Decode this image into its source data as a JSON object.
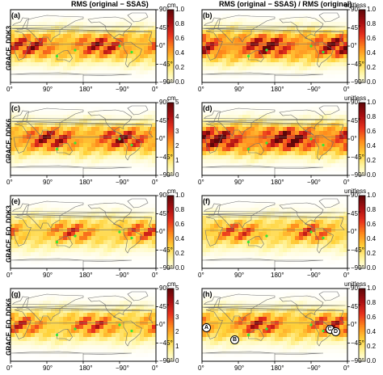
{
  "columns": [
    {
      "title": "RMS (original − SSAS)"
    },
    {
      "title": "RMS (original − SSAS) / RMS (original)"
    }
  ],
  "rows": [
    {
      "label": "GRACE, DDK3"
    },
    {
      "label": "GRACE, DDK6"
    },
    {
      "label": "GRACE_FO, DDK3"
    },
    {
      "label": "GRACE_FO, DDK6"
    }
  ],
  "panels": [
    {
      "letter": "(a)",
      "unit": "cm",
      "ticks": [
        "1.0",
        "0.8",
        "0.6",
        "0.4",
        "0.2",
        "0.0"
      ],
      "intensity": 0.55
    },
    {
      "letter": "(b)",
      "unit": "unitless",
      "ticks": [
        "1.0",
        "0.8",
        "0.6",
        "0.4",
        "0.2",
        "0.0"
      ],
      "intensity": 0.75
    },
    {
      "letter": "(c)",
      "unit": "cm",
      "ticks": [
        "5",
        "4",
        "3",
        "2",
        "1",
        "0"
      ],
      "intensity": 0.6
    },
    {
      "letter": "(d)",
      "unit": "unitless",
      "ticks": [
        "1.0",
        "0.8",
        "0.6",
        "0.4",
        "0.2",
        "0.0"
      ],
      "intensity": 0.85
    },
    {
      "letter": "(e)",
      "unit": "cm",
      "ticks": [
        "1.0",
        "0.8",
        "0.6",
        "0.4",
        "0.2",
        "0.0"
      ],
      "intensity": 0.3
    },
    {
      "letter": "(f)",
      "unit": "unitless",
      "ticks": [
        "1.0",
        "0.8",
        "0.6",
        "0.4",
        "0.2",
        "0.0"
      ],
      "intensity": 0.3
    },
    {
      "letter": "(g)",
      "unit": "cm",
      "ticks": [
        "5",
        "4",
        "3",
        "2",
        "1",
        "0"
      ],
      "intensity": 0.35
    },
    {
      "letter": "(h)",
      "unit": "unitless",
      "ticks": [
        "1.0",
        "0.8",
        "0.6",
        "0.4",
        "0.2",
        "0.0"
      ],
      "intensity": 0.45
    }
  ],
  "lat_labels": [
    "90°",
    "45°",
    "0°",
    "−45°",
    "−90°"
  ],
  "lon_labels": [
    "0°",
    "90°",
    "180°",
    "−90°",
    "0°"
  ],
  "sites": [
    "A",
    "B",
    "C",
    "D"
  ],
  "colors": {
    "scale": [
      "#ffffff",
      "#fff7a8",
      "#ffd23a",
      "#ff8a1c",
      "#e8321e",
      "#a80f12",
      "#5e0709"
    ],
    "coast": "#6e6e6e",
    "site_marker": "#36e636"
  }
}
